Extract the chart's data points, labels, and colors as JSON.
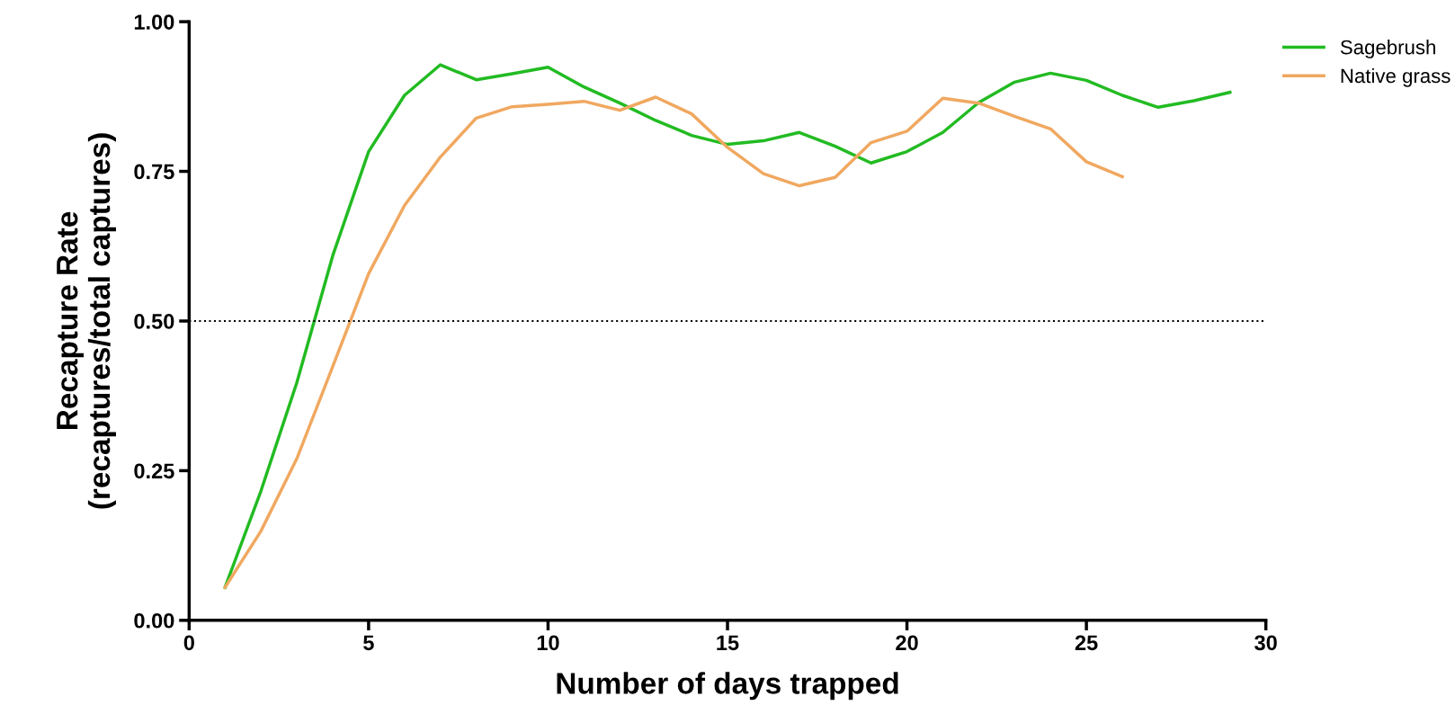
{
  "chart_data": {
    "type": "line",
    "xlabel": "Number of days trapped",
    "ylabel": "Recapture Rate\n(recaptures/total captures)",
    "xlim": [
      0,
      30
    ],
    "xticks": [
      0,
      5,
      10,
      15,
      20,
      25,
      30
    ],
    "ylim": [
      0,
      1
    ],
    "yticks": [
      {
        "value": 0,
        "label": "0.00"
      },
      {
        "value": 0.25,
        "label": "0.25"
      },
      {
        "value": 0.5,
        "label": "0.50"
      },
      {
        "value": 0.75,
        "label": "0.75"
      },
      {
        "value": 1,
        "label": "1.00"
      }
    ],
    "grid": false,
    "legend": "top right",
    "marker": "none",
    "line_style": "solid",
    "ref_lines": [
      {
        "axis": "y",
        "value": 0.5,
        "color": "#000000",
        "line_style": "dotted"
      }
    ],
    "series": [
      {
        "name": "Sagebrush",
        "color": "#22bb22",
        "x": [
          1,
          2,
          3,
          4,
          5,
          6,
          7,
          8,
          9,
          10,
          11,
          12,
          13,
          14,
          15,
          16,
          17,
          18,
          19,
          20,
          21,
          22,
          23,
          24,
          25,
          26,
          27,
          28,
          29
        ],
        "values": [
          0.055,
          0.216,
          0.397,
          0.609,
          0.783,
          0.877,
          0.928,
          0.903,
          0.913,
          0.924,
          0.891,
          0.864,
          0.835,
          0.81,
          0.795,
          0.801,
          0.815,
          0.792,
          0.764,
          0.783,
          0.815,
          0.865,
          0.899,
          0.914,
          0.902,
          0.877,
          0.857,
          0.868,
          0.882
        ]
      },
      {
        "name": "Native grass",
        "color": "#f0a860",
        "x": [
          1,
          2,
          3,
          4,
          5,
          6,
          7,
          8,
          9,
          10,
          11,
          12,
          13,
          14,
          15,
          16,
          17,
          18,
          19,
          20,
          21,
          22,
          23,
          24,
          25,
          26
        ],
        "values": [
          0.055,
          0.149,
          0.27,
          0.424,
          0.579,
          0.693,
          0.774,
          0.839,
          0.858,
          0.862,
          0.867,
          0.852,
          0.874,
          0.846,
          0.79,
          0.746,
          0.726,
          0.74,
          0.798,
          0.817,
          0.872,
          0.864,
          0.842,
          0.821,
          0.766,
          0.741
        ]
      }
    ]
  }
}
